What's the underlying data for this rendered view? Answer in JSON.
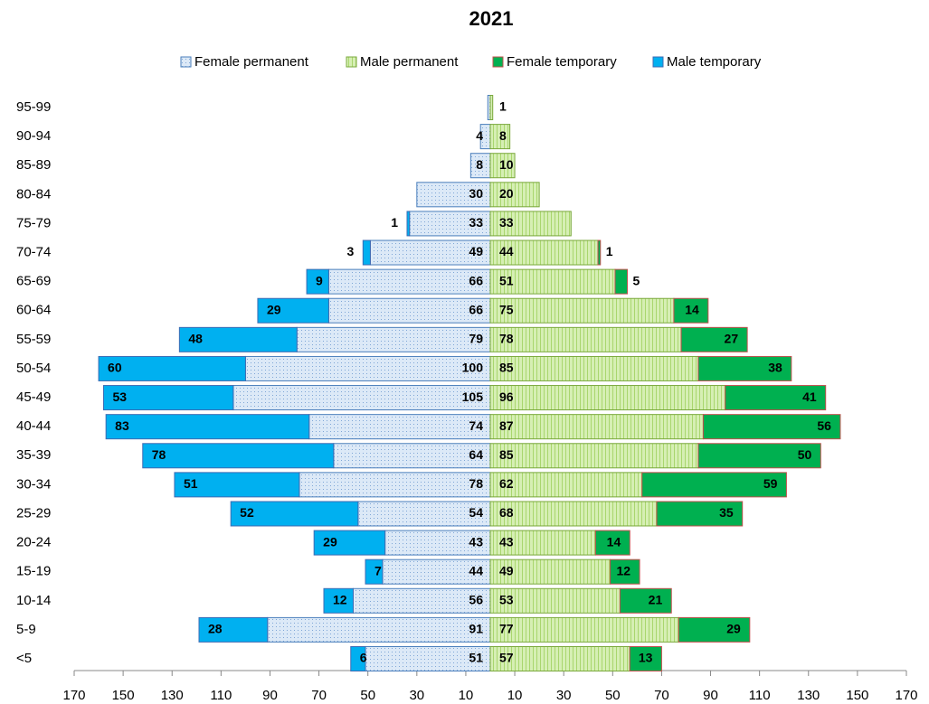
{
  "chart_data": {
    "type": "pyramid",
    "title": "2021",
    "categories": [
      "<5",
      "5-9",
      "10-14",
      "15-19",
      "20-24",
      "25-29",
      "30-34",
      "35-39",
      "40-44",
      "45-49",
      "50-54",
      "55-59",
      "60-64",
      "65-69",
      "70-74",
      "75-79",
      "80-84",
      "85-89",
      "90-94",
      "95-99"
    ],
    "series": [
      {
        "name": "Female permanent",
        "color": "#dce9f7",
        "values": [
          51,
          91,
          56,
          44,
          43,
          54,
          78,
          64,
          74,
          105,
          100,
          79,
          66,
          66,
          49,
          33,
          30,
          8,
          4,
          1
        ],
        "value_labels": [
          "51",
          "91",
          "56",
          "44",
          "43",
          "54",
          "78",
          "64",
          "74",
          "105",
          "100",
          "79",
          "66",
          "66",
          "49",
          "33",
          "30",
          "8",
          "4",
          null
        ]
      },
      {
        "name": "Male permanent",
        "color": "#d6efb4",
        "values": [
          57,
          77,
          53,
          49,
          43,
          68,
          62,
          85,
          87,
          96,
          85,
          78,
          75,
          51,
          44,
          33,
          20,
          10,
          8,
          1
        ]
      },
      {
        "name": "Female temporary",
        "color": "#00b050",
        "values": [
          13,
          29,
          21,
          12,
          14,
          35,
          59,
          50,
          56,
          41,
          38,
          27,
          14,
          5,
          1,
          0,
          0,
          0,
          0,
          0
        ]
      },
      {
        "name": "Male temporary",
        "color": "#00b0f0",
        "values": [
          6,
          28,
          12,
          7,
          29,
          52,
          51,
          78,
          83,
          53,
          60,
          48,
          29,
          9,
          3,
          1,
          0,
          0,
          0,
          0
        ]
      }
    ],
    "xlim": [
      -170,
      170
    ],
    "xticks": [
      {
        "value": -170,
        "label": "170"
      },
      {
        "value": -150,
        "label": "150"
      },
      {
        "value": -130,
        "label": "130"
      },
      {
        "value": -110,
        "label": "110"
      },
      {
        "value": -90,
        "label": "90"
      },
      {
        "value": -70,
        "label": "70"
      },
      {
        "value": -50,
        "label": "50"
      },
      {
        "value": -30,
        "label": "30"
      },
      {
        "value": -10,
        "label": "10"
      },
      10,
      30,
      50,
      70,
      90,
      110,
      130,
      150,
      170
    ],
    "legend": "top"
  }
}
